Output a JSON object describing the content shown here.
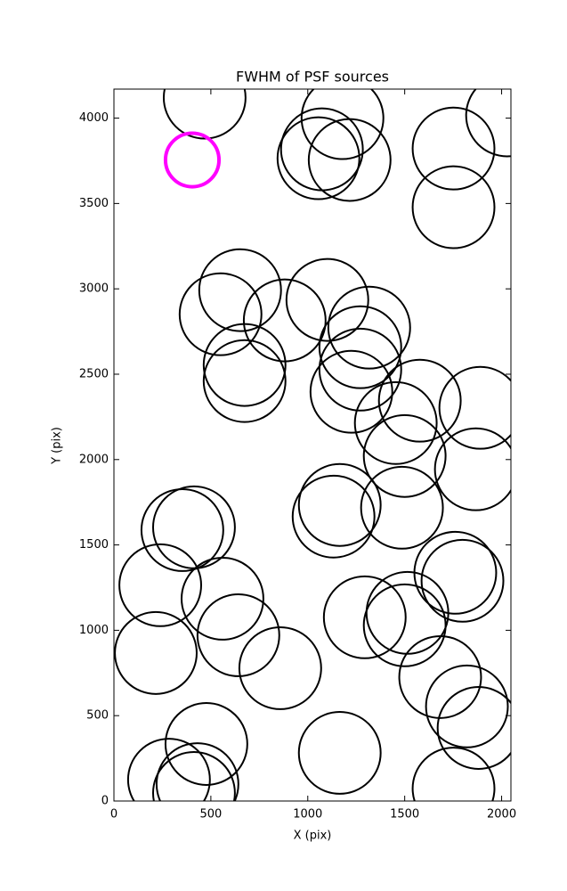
{
  "chart_data": {
    "type": "scatter",
    "title": "FWHM of PSF sources",
    "x_label": "X (pix)",
    "y_label": "Y (pix)",
    "xlim": [
      0,
      2048
    ],
    "ylim": [
      0,
      4170
    ],
    "xticks": [
      0,
      500,
      1000,
      1500,
      2000
    ],
    "yticks": [
      0,
      500,
      1000,
      1500,
      2000,
      2500,
      3000,
      3500,
      4000
    ],
    "series": [
      {
        "color": "#000000",
        "size": 211,
        "x": [
          468,
          1179,
          1055,
          1073,
          1216,
          2028,
          1752,
          1752,
          651,
          550,
          881,
          1101,
          1317,
          1271,
          674,
          674,
          1271,
          1225,
          1578,
          1890,
          1454,
          1500,
          1867,
          1165,
          1133,
          1486,
          353,
          413,
          239,
          560,
          642,
          1761,
          1798,
          1294,
          1514,
          1500,
          216,
          858,
          1683,
          1821,
          1881,
          1165,
          477,
          284,
          431,
          413,
          1752
        ],
        "values": [
          4120,
          4000,
          3765,
          3817,
          3755,
          4016,
          3822,
          3478,
          2992,
          2851,
          2815,
          2935,
          2773,
          2658,
          2554,
          2460,
          2527,
          2397,
          2345,
          2303,
          2214,
          2021,
          1943,
          1734,
          1666,
          1718,
          1587,
          1603,
          1264,
          1185,
          971,
          1337,
          1290,
          1076,
          1102,
          1029,
          867,
          778,
          726,
          554,
          428,
          282,
          334,
          125,
          99,
          47,
          73
        ]
      },
      {
        "color": "#ff00ff",
        "size": 138,
        "x": [
          404
        ],
        "values": [
          3755
        ]
      }
    ]
  }
}
